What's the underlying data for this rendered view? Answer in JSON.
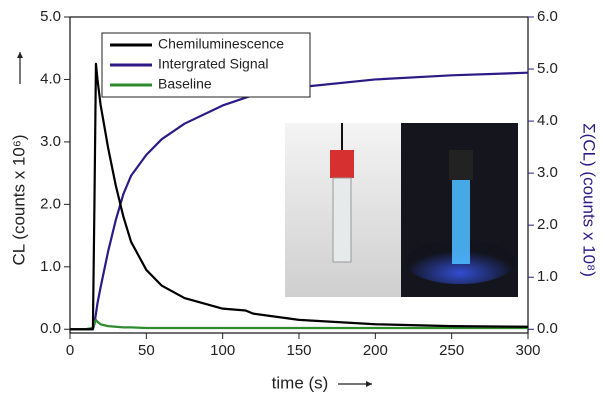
{
  "chart_data": {
    "type": "line",
    "x_label": "time (s)",
    "y_label": "CL (counts x 10⁶)",
    "y2_label": "Σ(CL) (counts x 10⁸)",
    "x": [
      0,
      10,
      15,
      16,
      17,
      18,
      20,
      25,
      30,
      35,
      40,
      50,
      60,
      75,
      100,
      115,
      120,
      150,
      200,
      250,
      300
    ],
    "series": [
      {
        "name": "Chemiluminescence",
        "color": "#000000",
        "values": [
          0,
          0,
          0,
          2,
          4.25,
          4.0,
          3.6,
          2.9,
          2.3,
          1.8,
          1.4,
          0.95,
          0.7,
          0.5,
          0.33,
          0.3,
          0.25,
          0.15,
          0.08,
          0.05,
          0.04
        ]
      },
      {
        "name": "Intergrated Signal",
        "color": "#2e1a87",
        "axis": "y2",
        "values": [
          0,
          0,
          0,
          0.1,
          0.3,
          0.5,
          0.8,
          1.5,
          2.1,
          2.6,
          2.95,
          3.35,
          3.65,
          3.95,
          4.3,
          4.45,
          4.5,
          4.65,
          4.8,
          4.88,
          4.93
        ]
      },
      {
        "name": "Baseline",
        "color": "#2e8b2e",
        "values": [
          0,
          0,
          0.02,
          0.1,
          0.15,
          0.12,
          0.08,
          0.05,
          0.04,
          0.03,
          0.03,
          0.02,
          0.02,
          0.02,
          0.02,
          0.02,
          0.02,
          0.02,
          0.02,
          0.02,
          0.02
        ]
      }
    ],
    "xlim": [
      0,
      300
    ],
    "xticks": [
      0,
      50,
      100,
      150,
      200,
      250,
      300
    ],
    "ylim": [
      -0.06,
      5.0
    ],
    "yticks": [
      {
        "value": 0,
        "label": "0.0"
      },
      {
        "value": 1,
        "label": "1.0"
      },
      {
        "value": 2,
        "label": "2.0"
      },
      {
        "value": 3,
        "label": "3.0"
      },
      {
        "value": 4,
        "label": "4.0"
      },
      {
        "value": 5,
        "label": "5.0"
      }
    ],
    "y2lim": [
      -0.072,
      6.0
    ],
    "y2ticks": [
      {
        "value": 0,
        "label": "0.0"
      },
      {
        "value": 1,
        "label": "1.0"
      },
      {
        "value": 2,
        "label": "2.0"
      },
      {
        "value": 3,
        "label": "3.0"
      },
      {
        "value": 4,
        "label": "4.0"
      },
      {
        "value": 5,
        "label": "5.0"
      },
      {
        "value": 6,
        "label": "6.0"
      }
    ],
    "legend": "upper left"
  }
}
